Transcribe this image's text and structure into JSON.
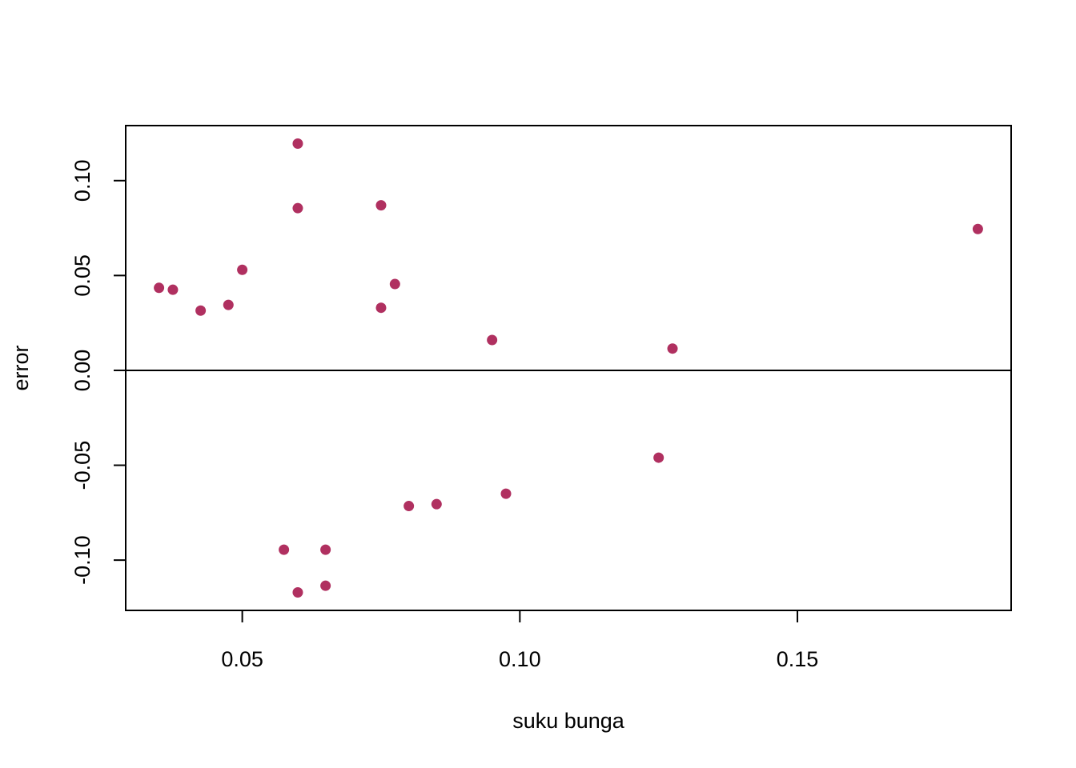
{
  "chart_data": {
    "type": "scatter",
    "title": "",
    "xlabel": "suku bunga",
    "ylabel": "error",
    "xlim": [
      0.029,
      0.1885
    ],
    "ylim": [
      -0.1265,
      0.129
    ],
    "x_ticks": [
      0.05,
      0.1,
      0.15
    ],
    "x_tick_labels": [
      "0.05",
      "0.10",
      "0.15"
    ],
    "y_ticks": [
      -0.1,
      -0.05,
      0.0,
      0.05,
      0.1
    ],
    "y_tick_labels": [
      "-0.10",
      "-0.05",
      "0.00",
      "0.05",
      "0.10"
    ],
    "reference_line_y": 0,
    "grid": false,
    "legend": "none",
    "point_color": "#B03060",
    "points": [
      {
        "x": 0.035,
        "y": 0.0435
      },
      {
        "x": 0.0375,
        "y": 0.0425
      },
      {
        "x": 0.0425,
        "y": 0.0315
      },
      {
        "x": 0.0475,
        "y": 0.0345
      },
      {
        "x": 0.05,
        "y": 0.053
      },
      {
        "x": 0.0575,
        "y": -0.0945
      },
      {
        "x": 0.06,
        "y": 0.1195
      },
      {
        "x": 0.06,
        "y": 0.0855
      },
      {
        "x": 0.06,
        "y": -0.117
      },
      {
        "x": 0.065,
        "y": -0.0945
      },
      {
        "x": 0.065,
        "y": -0.1135
      },
      {
        "x": 0.075,
        "y": 0.087
      },
      {
        "x": 0.075,
        "y": 0.033
      },
      {
        "x": 0.0775,
        "y": 0.0455
      },
      {
        "x": 0.08,
        "y": -0.0715
      },
      {
        "x": 0.085,
        "y": -0.0705
      },
      {
        "x": 0.095,
        "y": 0.016
      },
      {
        "x": 0.0975,
        "y": -0.065
      },
      {
        "x": 0.125,
        "y": -0.046
      },
      {
        "x": 0.1275,
        "y": 0.0115
      },
      {
        "x": 0.1825,
        "y": 0.0745
      }
    ]
  }
}
